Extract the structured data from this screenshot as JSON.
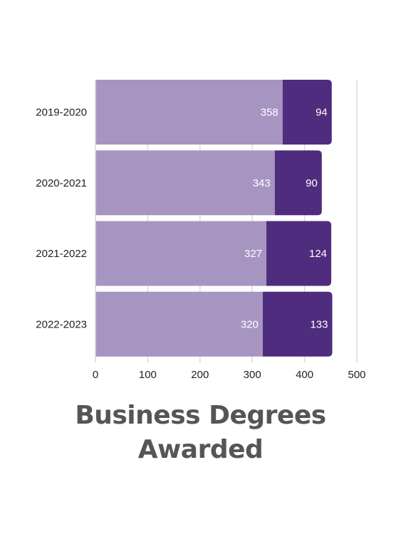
{
  "chart_data": {
    "type": "bar",
    "orientation": "horizontal",
    "stacked": true,
    "title_lines": [
      "Business Degrees",
      "Awarded"
    ],
    "categories": [
      "2019-2020",
      "2020-2021",
      "2021-2022",
      "2022-2023"
    ],
    "series": [
      {
        "values": [
          358,
          343,
          327,
          320
        ],
        "color": "#a695c1"
      },
      {
        "values": [
          94,
          90,
          124,
          133
        ],
        "color": "#4f2c7e"
      }
    ],
    "xlim": [
      0,
      500
    ],
    "x_ticks": [
      0,
      100,
      200,
      300,
      400,
      500
    ],
    "grid": true,
    "gridline_color": "#d9d9d9",
    "label_color": "#ffffff",
    "text_color": "#222222",
    "title_color": "#555555"
  }
}
